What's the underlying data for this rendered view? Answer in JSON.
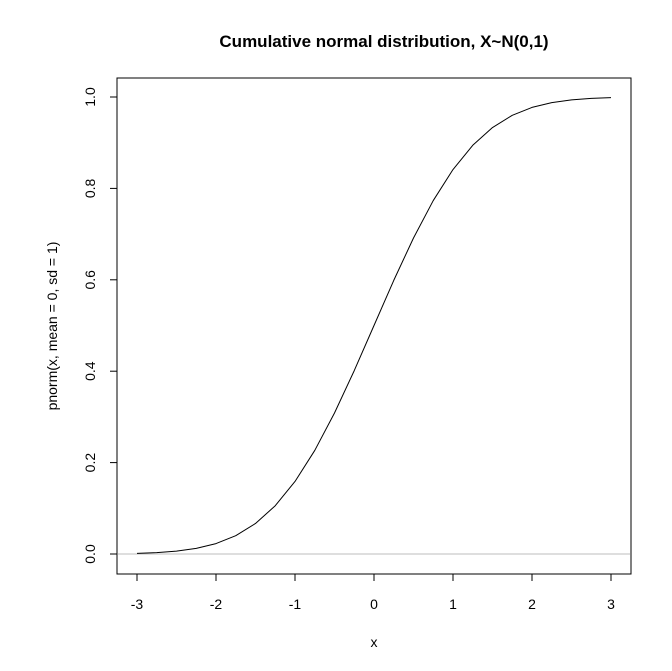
{
  "chart_data": {
    "type": "line",
    "title": "Cumulative normal distribution, X~N(0,1)",
    "xlabel": "x",
    "ylabel": "pnorm(x, mean = 0, sd = 1)",
    "xlim": [
      -3,
      3
    ],
    "ylim": [
      0,
      1
    ],
    "x_ticks": [
      "-3",
      "-2",
      "-1",
      "0",
      "1",
      "2",
      "3"
    ],
    "y_ticks": [
      "0.0",
      "0.2",
      "0.4",
      "0.6",
      "0.8",
      "1.0"
    ],
    "x_tick_values": [
      -3,
      -2,
      -1,
      0,
      1,
      2,
      3
    ],
    "y_tick_values": [
      0,
      0.2,
      0.4,
      0.6,
      0.8,
      1.0
    ],
    "reference_line": {
      "y": 0,
      "color": "#bebebe"
    },
    "series": [
      {
        "color": "#000000",
        "x": [
          -3,
          -2.75,
          -2.5,
          -2.25,
          -2,
          -1.75,
          -1.5,
          -1.25,
          -1,
          -0.75,
          -0.5,
          -0.25,
          0,
          0.25,
          0.5,
          0.75,
          1,
          1.25,
          1.5,
          1.75,
          2,
          2.25,
          2.5,
          2.75,
          3
        ],
        "y": [
          0.0013,
          0.003,
          0.0062,
          0.0122,
          0.0228,
          0.0401,
          0.0668,
          0.1056,
          0.1587,
          0.2266,
          0.3085,
          0.4013,
          0.5,
          0.5987,
          0.6915,
          0.7734,
          0.8413,
          0.8944,
          0.9332,
          0.9599,
          0.9772,
          0.9878,
          0.9938,
          0.997,
          0.9987
        ]
      }
    ]
  }
}
